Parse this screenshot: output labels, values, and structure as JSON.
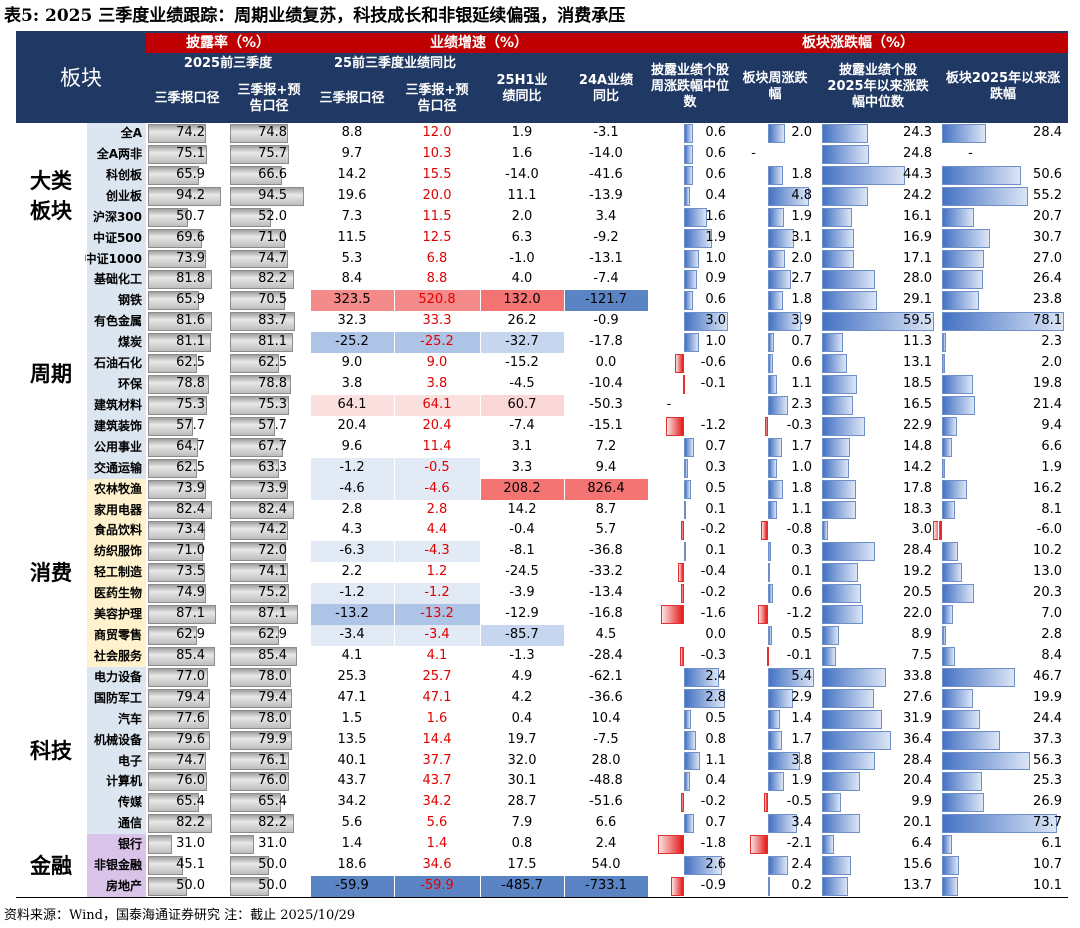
{
  "title": "表5: 2025 三季度业绩跟踪：周期业绩复苏，科技成长和非银延续偏强，消费承压",
  "footer": "资料来源：Wind，国泰海通证券研究 注：截止 2025/10/29",
  "headers": {
    "sector": "板块",
    "disclosure": "披露率（%）",
    "growth": "业绩增速（%）",
    "change": "板块涨跌幅（%）",
    "q3_2025": "2025前三季度",
    "q3_growth": "25前三季度业绩同比",
    "h1": "25H1业绩同比",
    "fy24": "24A业绩同比",
    "q3_report": "三季报口径",
    "q3_plus": "三季报+预告口径",
    "q3_report2": "三季报口径",
    "q3_plus2": "三季报+预告口径",
    "weekly_median": "披露业绩个股周涨跌幅中位数",
    "weekly": "板块周涨跌幅",
    "ytd_median": "披露业绩个股2025年以来涨跌幅中位数",
    "ytd": "板块2025年以来涨跌幅"
  },
  "sections": [
    {
      "name": "大类板块",
      "rows": 7
    },
    {
      "name": "周期",
      "rows": 10
    },
    {
      "name": "消费",
      "rows": 9
    },
    {
      "name": "科技",
      "rows": 8
    },
    {
      "name": "金融",
      "rows": 3
    }
  ],
  "rows": [
    {
      "name": "全A",
      "d1": "74.2",
      "d2": "74.8",
      "g1": "8.8",
      "g2": "12.0",
      "h1": "1.9",
      "fy": "-3.1",
      "wm": "0.6",
      "w": "2.0",
      "ym": "24.3",
      "y": "28.4"
    },
    {
      "name": "全A两非",
      "d1": "75.1",
      "d2": "75.7",
      "g1": "9.7",
      "g2": "10.3",
      "h1": "1.6",
      "fy": "-14.0",
      "wm": "0.6",
      "w": "-",
      "ym": "24.8",
      "y": "-"
    },
    {
      "name": "科创板",
      "d1": "65.9",
      "d2": "66.6",
      "g1": "14.2",
      "g2": "15.5",
      "h1": "-14.0",
      "fy": "-41.6",
      "wm": "0.6",
      "w": "1.8",
      "ym": "44.3",
      "y": "50.6"
    },
    {
      "name": "创业板",
      "d1": "94.2",
      "d2": "94.5",
      "g1": "19.6",
      "g2": "20.0",
      "h1": "11.1",
      "fy": "-13.9",
      "wm": "0.4",
      "w": "4.8",
      "ym": "24.2",
      "y": "55.2"
    },
    {
      "name": "沪深300",
      "d1": "50.7",
      "d2": "52.0",
      "g1": "7.3",
      "g2": "11.5",
      "h1": "2.0",
      "fy": "3.4",
      "wm": "1.6",
      "w": "1.9",
      "ym": "16.1",
      "y": "20.7"
    },
    {
      "name": "中证500",
      "d1": "69.6",
      "d2": "71.0",
      "g1": "11.5",
      "g2": "12.5",
      "h1": "6.3",
      "fy": "-9.2",
      "wm": "1.9",
      "w": "3.1",
      "ym": "16.9",
      "y": "30.7"
    },
    {
      "name": "中证1000",
      "d1": "73.9",
      "d2": "74.7",
      "g1": "5.3",
      "g2": "6.8",
      "h1": "-1.0",
      "fy": "-13.1",
      "wm": "1.0",
      "w": "2.0",
      "ym": "17.1",
      "y": "27.0"
    },
    {
      "name": "基础化工",
      "d1": "81.8",
      "d2": "82.2",
      "g1": "8.4",
      "g2": "8.8",
      "h1": "4.0",
      "fy": "-7.4",
      "wm": "0.9",
      "w": "2.7",
      "ym": "28.0",
      "y": "26.4"
    },
    {
      "name": "钢铁",
      "d1": "65.9",
      "d2": "70.5",
      "g1": "323.5",
      "g2": "520.8",
      "h1": "132.0",
      "fy": "-121.7",
      "wm": "0.6",
      "w": "1.8",
      "ym": "29.1",
      "y": "23.8"
    },
    {
      "name": "有色金属",
      "d1": "81.6",
      "d2": "83.7",
      "g1": "32.3",
      "g2": "33.3",
      "h1": "26.2",
      "fy": "-0.9",
      "wm": "3.0",
      "w": "3.9",
      "ym": "59.5",
      "y": "78.1"
    },
    {
      "name": "煤炭",
      "d1": "81.1",
      "d2": "81.1",
      "g1": "-25.2",
      "g2": "-25.2",
      "h1": "-32.7",
      "fy": "-17.8",
      "wm": "1.0",
      "w": "0.7",
      "ym": "11.3",
      "y": "2.3"
    },
    {
      "name": "石油石化",
      "d1": "62.5",
      "d2": "62.5",
      "g1": "9.0",
      "g2": "9.0",
      "h1": "-15.2",
      "fy": "0.0",
      "wm": "-0.6",
      "w": "0.6",
      "ym": "13.1",
      "y": "2.0"
    },
    {
      "name": "环保",
      "d1": "78.8",
      "d2": "78.8",
      "g1": "3.8",
      "g2": "3.8",
      "h1": "-4.5",
      "fy": "-10.4",
      "wm": "-0.1",
      "w": "1.1",
      "ym": "18.5",
      "y": "19.8"
    },
    {
      "name": "建筑材料",
      "d1": "75.3",
      "d2": "75.3",
      "g1": "64.1",
      "g2": "64.1",
      "h1": "60.7",
      "fy": "-50.3",
      "wm": "-",
      "w": "2.3",
      "ym": "16.5",
      "y": "21.4"
    },
    {
      "name": "建筑装饰",
      "d1": "57.7",
      "d2": "57.7",
      "g1": "20.4",
      "g2": "20.4",
      "h1": "-7.4",
      "fy": "-15.1",
      "wm": "-1.2",
      "w": "-0.3",
      "ym": "22.9",
      "y": "9.4"
    },
    {
      "name": "公用事业",
      "d1": "64.7",
      "d2": "67.7",
      "g1": "9.6",
      "g2": "11.4",
      "h1": "3.1",
      "fy": "7.2",
      "wm": "0.7",
      "w": "1.7",
      "ym": "14.8",
      "y": "6.6"
    },
    {
      "name": "交通运输",
      "d1": "62.5",
      "d2": "63.3",
      "g1": "-1.2",
      "g2": "-0.5",
      "h1": "3.3",
      "fy": "9.4",
      "wm": "0.3",
      "w": "1.0",
      "ym": "14.2",
      "y": "1.9"
    },
    {
      "name": "农林牧渔",
      "d1": "73.9",
      "d2": "73.9",
      "g1": "-4.6",
      "g2": "-4.6",
      "h1": "208.2",
      "fy": "826.4",
      "wm": "0.5",
      "w": "1.8",
      "ym": "17.8",
      "y": "16.2"
    },
    {
      "name": "家用电器",
      "d1": "82.4",
      "d2": "82.4",
      "g1": "2.8",
      "g2": "2.8",
      "h1": "14.2",
      "fy": "8.7",
      "wm": "0.1",
      "w": "1.1",
      "ym": "18.3",
      "y": "8.1"
    },
    {
      "name": "食品饮料",
      "d1": "73.4",
      "d2": "74.2",
      "g1": "4.3",
      "g2": "4.4",
      "h1": "-0.4",
      "fy": "5.7",
      "wm": "-0.2",
      "w": "-0.8",
      "ym": "3.0",
      "y": "-6.0"
    },
    {
      "name": "纺织服饰",
      "d1": "71.0",
      "d2": "72.0",
      "g1": "-6.3",
      "g2": "-4.3",
      "h1": "-8.1",
      "fy": "-36.8",
      "wm": "0.1",
      "w": "0.3",
      "ym": "28.4",
      "y": "10.2"
    },
    {
      "name": "轻工制造",
      "d1": "73.5",
      "d2": "74.1",
      "g1": "2.2",
      "g2": "1.2",
      "h1": "-24.5",
      "fy": "-33.2",
      "wm": "-0.4",
      "w": "0.1",
      "ym": "19.2",
      "y": "13.0"
    },
    {
      "name": "医药生物",
      "d1": "74.9",
      "d2": "75.2",
      "g1": "-1.2",
      "g2": "-1.2",
      "h1": "-3.9",
      "fy": "-13.4",
      "wm": "-0.2",
      "w": "0.6",
      "ym": "20.5",
      "y": "20.3"
    },
    {
      "name": "美容护理",
      "d1": "87.1",
      "d2": "87.1",
      "g1": "-13.2",
      "g2": "-13.2",
      "h1": "-12.9",
      "fy": "-16.8",
      "wm": "-1.6",
      "w": "-1.2",
      "ym": "22.0",
      "y": "7.0"
    },
    {
      "name": "商贸零售",
      "d1": "62.9",
      "d2": "62.9",
      "g1": "-3.4",
      "g2": "-3.4",
      "h1": "-85.7",
      "fy": "4.5",
      "wm": "0.0",
      "w": "0.5",
      "ym": "8.9",
      "y": "2.8"
    },
    {
      "name": "社会服务",
      "d1": "85.4",
      "d2": "85.4",
      "g1": "4.1",
      "g2": "4.1",
      "h1": "-1.3",
      "fy": "-28.4",
      "wm": "-0.3",
      "w": "-0.1",
      "ym": "7.5",
      "y": "8.4"
    },
    {
      "name": "电力设备",
      "d1": "77.0",
      "d2": "78.0",
      "g1": "25.3",
      "g2": "25.7",
      "h1": "4.9",
      "fy": "-62.1",
      "wm": "2.4",
      "w": "5.4",
      "ym": "33.8",
      "y": "46.7"
    },
    {
      "name": "国防军工",
      "d1": "79.4",
      "d2": "79.4",
      "g1": "47.1",
      "g2": "47.1",
      "h1": "4.2",
      "fy": "-36.6",
      "wm": "2.8",
      "w": "2.9",
      "ym": "27.6",
      "y": "19.9"
    },
    {
      "name": "汽车",
      "d1": "77.6",
      "d2": "78.0",
      "g1": "1.5",
      "g2": "1.6",
      "h1": "0.4",
      "fy": "10.4",
      "wm": "0.5",
      "w": "1.4",
      "ym": "31.9",
      "y": "24.4"
    },
    {
      "name": "机械设备",
      "d1": "79.6",
      "d2": "79.9",
      "g1": "13.5",
      "g2": "14.4",
      "h1": "19.7",
      "fy": "-7.5",
      "wm": "0.8",
      "w": "1.7",
      "ym": "36.4",
      "y": "37.3"
    },
    {
      "name": "电子",
      "d1": "74.7",
      "d2": "76.1",
      "g1": "40.1",
      "g2": "37.7",
      "h1": "32.0",
      "fy": "28.0",
      "wm": "1.1",
      "w": "3.8",
      "ym": "28.4",
      "y": "56.3"
    },
    {
      "name": "计算机",
      "d1": "76.0",
      "d2": "76.0",
      "g1": "43.7",
      "g2": "43.7",
      "h1": "30.1",
      "fy": "-48.8",
      "wm": "0.4",
      "w": "1.9",
      "ym": "20.4",
      "y": "25.3"
    },
    {
      "name": "传媒",
      "d1": "65.4",
      "d2": "65.4",
      "g1": "34.2",
      "g2": "34.2",
      "h1": "28.7",
      "fy": "-51.6",
      "wm": "-0.2",
      "w": "-0.5",
      "ym": "9.9",
      "y": "26.9"
    },
    {
      "name": "通信",
      "d1": "82.2",
      "d2": "82.2",
      "g1": "5.6",
      "g2": "5.6",
      "h1": "7.9",
      "fy": "6.6",
      "wm": "0.7",
      "w": "3.4",
      "ym": "20.1",
      "y": "73.7"
    },
    {
      "name": "银行",
      "d1": "31.0",
      "d2": "31.0",
      "g1": "1.4",
      "g2": "1.4",
      "h1": "0.8",
      "fy": "2.4",
      "wm": "-1.8",
      "w": "-2.1",
      "ym": "6.4",
      "y": "6.1"
    },
    {
      "name": "非银金融",
      "d1": "45.1",
      "d2": "50.0",
      "g1": "18.6",
      "g2": "34.6",
      "h1": "17.5",
      "fy": "54.0",
      "wm": "2.6",
      "w": "2.4",
      "ym": "15.6",
      "y": "10.7"
    },
    {
      "name": "房地产",
      "d1": "50.0",
      "d2": "50.0",
      "g1": "-59.9",
      "g2": "-59.9",
      "h1": "-485.7",
      "fy": "-733.1",
      "wm": "-0.9",
      "w": "0.2",
      "ym": "13.7",
      "y": "10.1"
    }
  ],
  "colors": {
    "header": "#1f3864",
    "header_red": "#c00000",
    "section_bg": "#dce6f1",
    "cycle_label_bg": "#dce6f1",
    "consumer_label_bg": "#fff2cc",
    "finance_label_bg": "#d9c3e9"
  }
}
